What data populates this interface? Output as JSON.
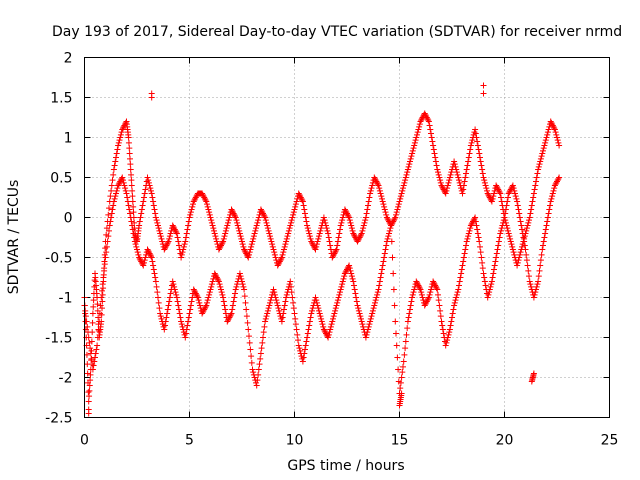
{
  "chart_data": {
    "type": "scatter",
    "title": "Day 193 of 2017, Sidereal Day-to-day VTEC variation (SDTVAR) for receiver nrmd",
    "xlabel": "GPS time / hours",
    "ylabel": "SDTVAR / TECUs",
    "xlim": [
      0,
      25
    ],
    "ylim": [
      -2.5,
      2
    ],
    "xticks": [
      "0",
      "5",
      "10",
      "15",
      "20",
      "25"
    ],
    "yticks": [
      "2",
      "1.5",
      "1",
      "0.5",
      "0",
      "-0.5",
      "-1",
      "-1.5",
      "-2",
      "-2.5"
    ],
    "grid": true,
    "marker": "+",
    "colors": {
      "series": "#ff0000",
      "grid": "#a0a0a0",
      "axes": "#000000"
    },
    "series": [
      {
        "name": "SDTVAR",
        "x": [
          0.0,
          0.1,
          0.2,
          0.3,
          0.4,
          0.5,
          0.6,
          0.7,
          0.8,
          0.9,
          1.0,
          1.2,
          1.4,
          1.6,
          1.8,
          2.0,
          2.1,
          2.2,
          2.3,
          2.4,
          2.5,
          2.6,
          2.8,
          3.0,
          3.2,
          3.4,
          3.6,
          3.8,
          4.0,
          4.2,
          4.4,
          4.6,
          4.8,
          5.0,
          5.2,
          5.4,
          5.6,
          5.8,
          6.0,
          6.2,
          6.4,
          6.6,
          6.8,
          7.0,
          7.2,
          7.4,
          7.6,
          7.8,
          8.0,
          8.2,
          8.4,
          8.6,
          8.8,
          9.0,
          9.2,
          9.4,
          9.6,
          9.8,
          10.0,
          10.2,
          10.4,
          10.6,
          10.8,
          11.0,
          11.2,
          11.4,
          11.6,
          11.8,
          12.0,
          12.2,
          12.4,
          12.6,
          12.8,
          13.0,
          13.2,
          13.4,
          13.6,
          13.8,
          14.0,
          14.2,
          14.4,
          14.6,
          14.8,
          15.0,
          15.2,
          15.4,
          15.6,
          15.8,
          16.0,
          16.2,
          16.4,
          16.6,
          16.8,
          17.0,
          17.2,
          17.4,
          17.6,
          17.8,
          18.0,
          18.2,
          18.4,
          18.6,
          18.8,
          19.0,
          19.2,
          19.4,
          19.6,
          19.8,
          20.0,
          20.2,
          20.4,
          20.6,
          20.8,
          21.0,
          21.2,
          21.4,
          21.6,
          21.8,
          22.0,
          22.2,
          22.4,
          22.6,
          0.0,
          0.2,
          0.4,
          0.6,
          0.8,
          1.0,
          1.2,
          1.4,
          1.6,
          1.8,
          2.0,
          2.2,
          2.4,
          2.6,
          2.8,
          3.0,
          3.2,
          3.4,
          3.6,
          3.8,
          4.0,
          4.2,
          4.4,
          4.6,
          4.8,
          5.0,
          5.2,
          5.4,
          5.6,
          5.8,
          6.0,
          6.2,
          6.4,
          6.6,
          6.8,
          7.0,
          7.2,
          7.4,
          7.6,
          7.8,
          8.0,
          8.2,
          8.4,
          8.6,
          8.8,
          9.0,
          9.2,
          9.4,
          9.6,
          9.8,
          10.0,
          10.2,
          10.4,
          10.6,
          10.8,
          11.0,
          11.2,
          11.4,
          11.6,
          11.8,
          12.0,
          12.2,
          12.4,
          12.6,
          12.8,
          13.0,
          13.2,
          13.4,
          13.6,
          13.8,
          14.0,
          14.2,
          14.4,
          14.6,
          14.8,
          15.0,
          15.2,
          15.4,
          15.6,
          15.8,
          16.0,
          16.2,
          16.4,
          16.6,
          16.8,
          17.0,
          17.2,
          17.4,
          17.6,
          17.8,
          18.0,
          18.2,
          18.4,
          18.6,
          18.8,
          19.0,
          19.2,
          19.4,
          19.6,
          19.8,
          20.0,
          20.2,
          20.4,
          20.6,
          20.8,
          21.0,
          21.2,
          21.4,
          21.6,
          21.8,
          22.0,
          22.2,
          22.4,
          22.6,
          3.2,
          3.2,
          19.0,
          19.0,
          0.2,
          0.2,
          15.0,
          15.1,
          21.3,
          21.4
        ],
        "y": [
          -1.0,
          -1.6,
          -2.3,
          -1.9,
          -1.2,
          -0.7,
          -1.0,
          -1.5,
          -1.3,
          -0.8,
          -0.3,
          0.2,
          0.6,
          0.9,
          1.1,
          1.2,
          1.0,
          0.6,
          0.2,
          -0.2,
          -0.3,
          -0.1,
          0.2,
          0.5,
          0.3,
          0.0,
          -0.2,
          -0.4,
          -0.3,
          -0.1,
          -0.2,
          -0.5,
          -0.3,
          0.0,
          0.2,
          0.3,
          0.3,
          0.2,
          0.0,
          -0.2,
          -0.4,
          -0.3,
          -0.1,
          0.1,
          0.0,
          -0.2,
          -0.4,
          -0.5,
          -0.3,
          -0.1,
          0.1,
          0.0,
          -0.2,
          -0.4,
          -0.6,
          -0.5,
          -0.3,
          -0.1,
          0.1,
          0.3,
          0.2,
          -0.1,
          -0.3,
          -0.4,
          -0.2,
          0.0,
          -0.2,
          -0.5,
          -0.4,
          -0.1,
          0.1,
          0.0,
          -0.2,
          -0.3,
          -0.2,
          0.0,
          0.3,
          0.5,
          0.4,
          0.2,
          0.0,
          -0.1,
          0.0,
          0.2,
          0.4,
          0.6,
          0.8,
          1.0,
          1.2,
          1.3,
          1.2,
          0.9,
          0.6,
          0.4,
          0.3,
          0.5,
          0.7,
          0.5,
          0.3,
          0.6,
          0.9,
          1.1,
          0.8,
          0.5,
          0.3,
          0.2,
          0.4,
          0.3,
          0.0,
          -0.2,
          -0.4,
          -0.6,
          -0.4,
          -0.2,
          0.0,
          0.3,
          0.6,
          0.8,
          1.0,
          1.2,
          1.1,
          0.9,
          -1.1,
          -1.5,
          -1.9,
          -1.6,
          -1.0,
          -0.5,
          -0.1,
          0.2,
          0.4,
          0.5,
          0.3,
          0.0,
          -0.3,
          -0.5,
          -0.6,
          -0.4,
          -0.5,
          -0.8,
          -1.2,
          -1.4,
          -1.1,
          -0.8,
          -1.0,
          -1.3,
          -1.5,
          -1.2,
          -0.9,
          -1.0,
          -1.2,
          -1.1,
          -0.9,
          -0.7,
          -0.8,
          -1.0,
          -1.3,
          -1.2,
          -0.9,
          -0.7,
          -0.9,
          -1.4,
          -1.9,
          -2.1,
          -1.7,
          -1.3,
          -1.1,
          -0.9,
          -1.1,
          -1.3,
          -1.0,
          -0.8,
          -1.2,
          -1.6,
          -1.8,
          -1.5,
          -1.2,
          -1.0,
          -1.2,
          -1.4,
          -1.5,
          -1.3,
          -1.1,
          -0.9,
          -0.7,
          -0.6,
          -0.8,
          -1.1,
          -1.3,
          -1.5,
          -1.3,
          -1.1,
          -0.9,
          -0.6,
          -0.3,
          -0.1,
          -1.3,
          -2.2,
          -1.8,
          -1.3,
          -1.0,
          -0.8,
          -0.9,
          -1.1,
          -1.0,
          -0.8,
          -0.9,
          -1.3,
          -1.6,
          -1.4,
          -1.1,
          -0.9,
          -0.6,
          -0.3,
          -0.1,
          0.0,
          -0.3,
          -0.7,
          -1.0,
          -0.8,
          -0.5,
          -0.2,
          0.0,
          0.3,
          0.4,
          0.2,
          -0.1,
          -0.4,
          -0.8,
          -1.0,
          -0.8,
          -0.4,
          -0.1,
          0.2,
          0.4,
          0.5,
          1.55,
          1.5,
          1.65,
          1.55,
          -2.45,
          -2.4,
          -2.35,
          -2.2,
          -2.05,
          -1.95
        ]
      }
    ]
  }
}
